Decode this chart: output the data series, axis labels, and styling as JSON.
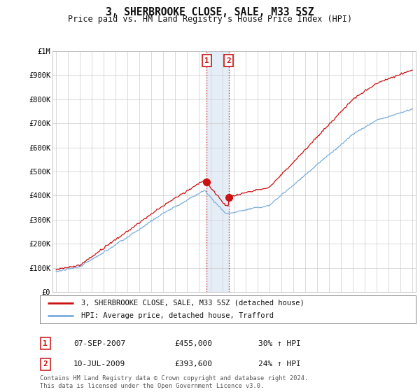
{
  "title": "3, SHERBROOKE CLOSE, SALE, M33 5SZ",
  "subtitle": "Price paid vs. HM Land Registry's House Price Index (HPI)",
  "ylabel_ticks": [
    "£0",
    "£100K",
    "£200K",
    "£300K",
    "£400K",
    "£500K",
    "£600K",
    "£700K",
    "£800K",
    "£900K",
    "£1M"
  ],
  "ytick_values": [
    0,
    100000,
    200000,
    300000,
    400000,
    500000,
    600000,
    700000,
    800000,
    900000,
    1000000
  ],
  "ylim": [
    0,
    1000000
  ],
  "xlim_start": 1994.7,
  "xlim_end": 2025.3,
  "transaction1_x": 2007.69,
  "transaction1_y": 455000,
  "transaction2_x": 2009.53,
  "transaction2_y": 393600,
  "hpi_color": "#7aaddc",
  "price_color": "#cc1111",
  "legend_label1": "3, SHERBROOKE CLOSE, SALE, M33 5SZ (detached house)",
  "legend_label2": "HPI: Average price, detached house, Trafford",
  "table_row1_label": "1",
  "table_row1_date": "07-SEP-2007",
  "table_row1_price": "£455,000",
  "table_row1_hpi": "30% ↑ HPI",
  "table_row2_label": "2",
  "table_row2_date": "10-JUL-2009",
  "table_row2_price": "£393,600",
  "table_row2_hpi": "24% ↑ HPI",
  "footer": "Contains HM Land Registry data © Crown copyright and database right 2024.\nThis data is licensed under the Open Government Licence v3.0.",
  "background_color": "#ffffff",
  "grid_color": "#cccccc"
}
